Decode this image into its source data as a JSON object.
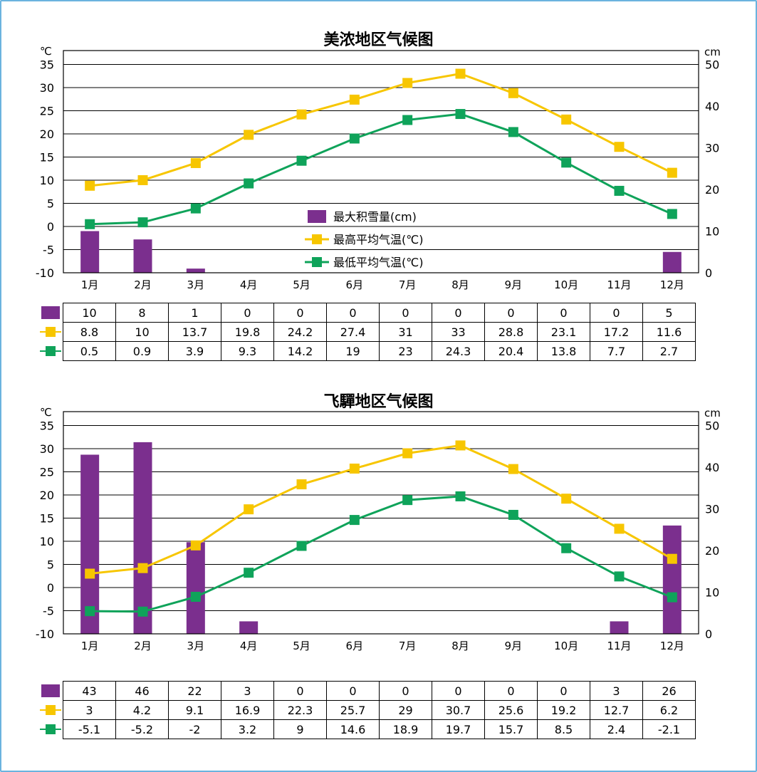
{
  "colors": {
    "snow": "#7b2f8e",
    "high": "#f7c600",
    "low": "#0fa35a"
  },
  "months": [
    "1月",
    "2月",
    "3月",
    "4月",
    "5月",
    "6月",
    "7月",
    "8月",
    "9月",
    "10月",
    "11月",
    "12月"
  ],
  "chart_data": [
    {
      "type": "bar+line",
      "title": "美浓地区气候图",
      "left_unit": "℃",
      "right_unit": "cm",
      "ylim_left": [
        -10,
        35
      ],
      "ylim_right": [
        0,
        50
      ],
      "left_ticks": [
        "35",
        "30",
        "25",
        "20",
        "15",
        "10",
        "5",
        "0",
        "-5",
        "-10"
      ],
      "right_ticks": [
        "50",
        "40",
        "30",
        "20",
        "10",
        "0"
      ],
      "grid": true,
      "legend_position": "center",
      "categories": [
        "1月",
        "2月",
        "3月",
        "4月",
        "5月",
        "6月",
        "7月",
        "8月",
        "9月",
        "10月",
        "11月",
        "12月"
      ],
      "series": [
        {
          "name": "最大积雪量(cm)",
          "type": "bar",
          "axis": "right",
          "values": [
            10,
            8,
            1,
            0,
            0,
            0,
            0,
            0,
            0,
            0,
            0,
            5
          ],
          "labels": [
            "10",
            "8",
            "1",
            "0",
            "0",
            "0",
            "0",
            "0",
            "0",
            "0",
            "0",
            "5"
          ]
        },
        {
          "name": "最高平均气温(℃)",
          "type": "line",
          "axis": "left",
          "values": [
            8.8,
            10,
            13.7,
            19.8,
            24.2,
            27.4,
            31,
            33,
            28.8,
            23.1,
            17.2,
            11.6
          ],
          "labels": [
            "8.8",
            "10",
            "13.7",
            "19.8",
            "24.2",
            "27.4",
            "31",
            "33",
            "28.8",
            "23.1",
            "17.2",
            "11.6"
          ]
        },
        {
          "name": "最低平均气温(℃)",
          "type": "line",
          "axis": "left",
          "values": [
            0.5,
            0.9,
            3.9,
            9.3,
            14.2,
            19,
            23,
            24.3,
            20.4,
            13.8,
            7.7,
            2.7
          ],
          "labels": [
            "0.5",
            "0.9",
            "3.9",
            "9.3",
            "14.2",
            "19",
            "23",
            "24.3",
            "20.4",
            "13.8",
            "7.7",
            "2.7"
          ]
        }
      ]
    },
    {
      "type": "bar+line",
      "title": "飞驒地区气候图",
      "left_unit": "℃",
      "right_unit": "cm",
      "ylim_left": [
        -10,
        35
      ],
      "ylim_right": [
        0,
        50
      ],
      "left_ticks": [
        "35",
        "30",
        "25",
        "20",
        "15",
        "10",
        "5",
        "0",
        "-5",
        "-10"
      ],
      "right_ticks": [
        "50",
        "40",
        "30",
        "20",
        "10",
        "0"
      ],
      "grid": true,
      "categories": [
        "1月",
        "2月",
        "3月",
        "4月",
        "5月",
        "6月",
        "7月",
        "8月",
        "9月",
        "10月",
        "11月",
        "12月"
      ],
      "series": [
        {
          "name": "最大积雪量(cm)",
          "type": "bar",
          "axis": "right",
          "values": [
            43,
            46,
            22,
            3,
            0,
            0,
            0,
            0,
            0,
            0,
            3,
            26
          ],
          "labels": [
            "43",
            "46",
            "22",
            "3",
            "0",
            "0",
            "0",
            "0",
            "0",
            "0",
            "3",
            "26"
          ]
        },
        {
          "name": "最高平均气温(℃)",
          "type": "line",
          "axis": "left",
          "values": [
            3,
            4.2,
            9.1,
            16.9,
            22.3,
            25.7,
            29,
            30.7,
            25.6,
            19.2,
            12.7,
            6.2
          ],
          "labels": [
            "3",
            "4.2",
            "9.1",
            "16.9",
            "22.3",
            "25.7",
            "29",
            "30.7",
            "25.6",
            "19.2",
            "12.7",
            "6.2"
          ]
        },
        {
          "name": "最低平均气温(℃)",
          "type": "line",
          "axis": "left",
          "values": [
            -5.1,
            -5.2,
            -2,
            3.2,
            9,
            14.6,
            18.9,
            19.7,
            15.7,
            8.5,
            2.4,
            -2.1
          ],
          "labels": [
            "-5.1",
            "-5.2",
            "-2",
            "3.2",
            "9",
            "14.6",
            "18.9",
            "19.7",
            "15.7",
            "8.5",
            "2.4",
            "-2.1"
          ]
        }
      ]
    }
  ]
}
